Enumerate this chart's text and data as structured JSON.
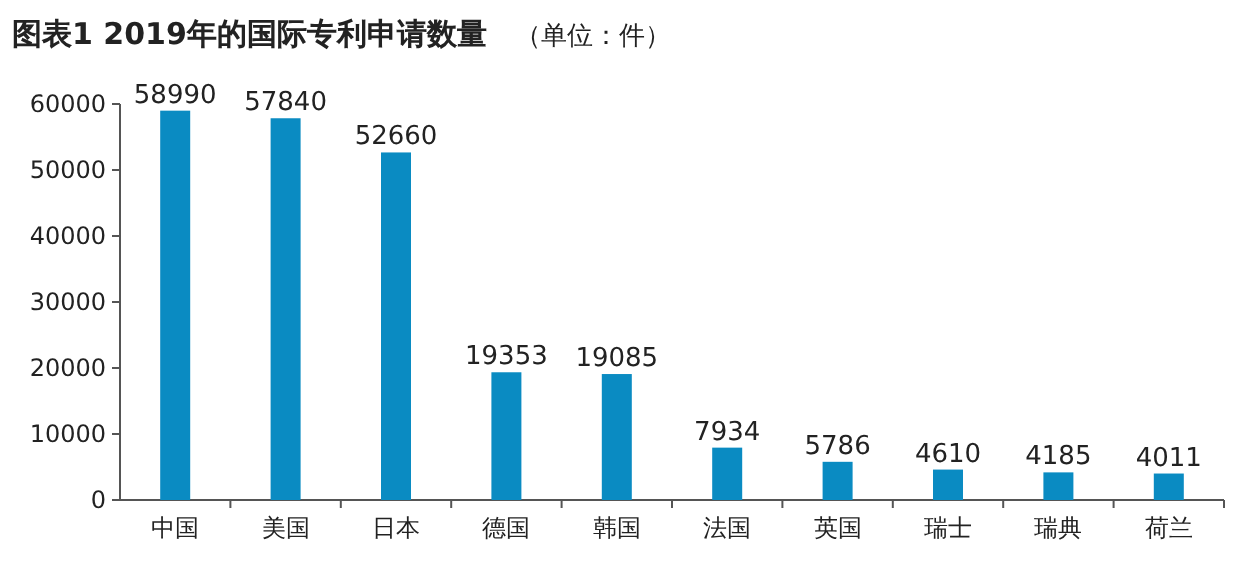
{
  "chart_data": {
    "type": "bar",
    "title": "图表1  2019年的国际专利申请数量",
    "subtitle": "（单位：件）",
    "categories": [
      "中国",
      "美国",
      "日本",
      "德国",
      "韩国",
      "法国",
      "英国",
      "瑞士",
      "瑞典",
      "荷兰"
    ],
    "values": [
      58990,
      57840,
      52660,
      19353,
      19085,
      7934,
      5786,
      4610,
      4185,
      4011
    ],
    "color": "#0a8bc2",
    "ylim": [
      0,
      60000
    ],
    "yticks": [
      0,
      10000,
      20000,
      30000,
      40000,
      50000,
      60000
    ],
    "grid": false,
    "data_labels": true
  }
}
